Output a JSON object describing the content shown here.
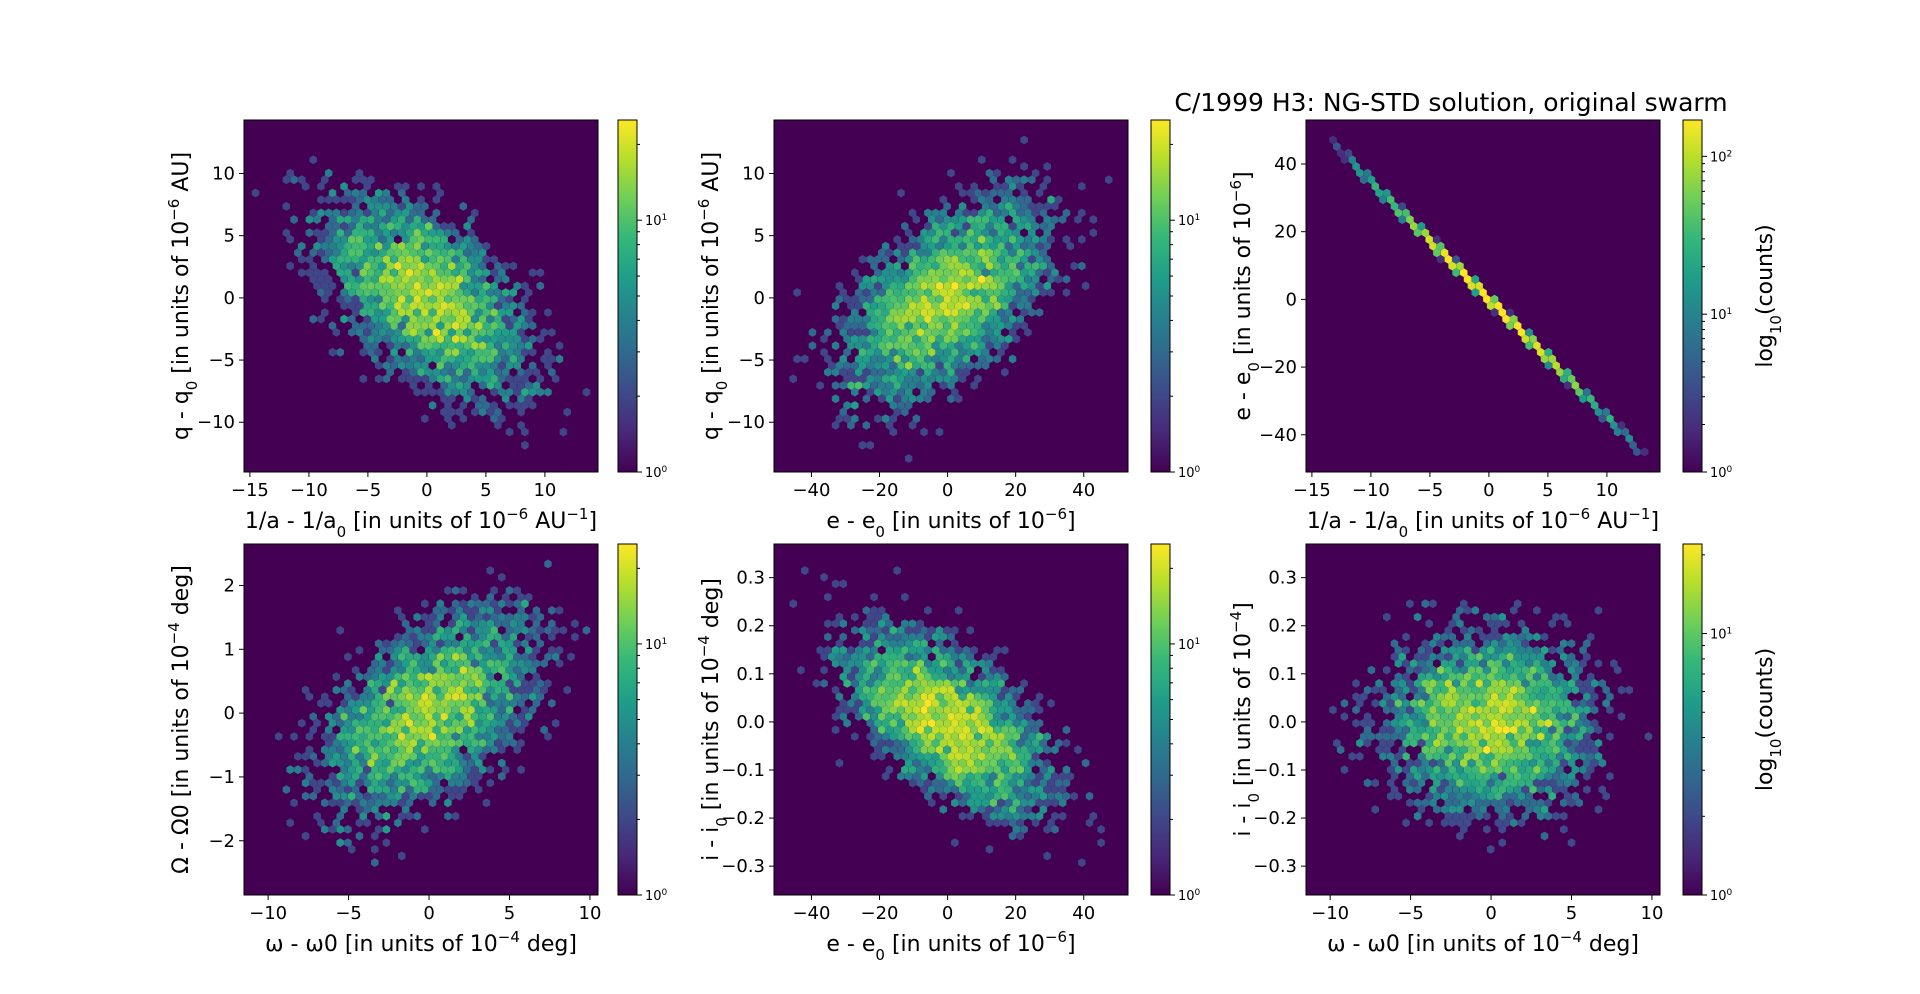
{
  "figure": {
    "title": "C/1999 H3: NG-STD solution, original swarm"
  },
  "colors": {
    "background": "#440154",
    "colormap": [
      "#440154",
      "#482878",
      "#3e4989",
      "#31688e",
      "#26828e",
      "#1f9e89",
      "#35b779",
      "#6ece58",
      "#b5de2b",
      "#fde725"
    ]
  },
  "chart_data": [
    {
      "type": "heatmap",
      "subtype": "hexbin",
      "scale": "log",
      "xlabel": "1/a - 1/a0 [in units of 10^-6 AU^-1]",
      "ylabel": "q - q0 [in units of 10^-6 AU]",
      "xlim": [
        -15.5,
        14.5
      ],
      "ylim": [
        -14,
        14.3
      ],
      "xticks": [
        -15,
        -10,
        -5,
        0,
        5,
        10
      ],
      "yticks": [
        -10,
        -5,
        0,
        5,
        10
      ],
      "distribution": {
        "x_sigma": 4.6,
        "y_sigma": 4.3,
        "correlation": -0.55,
        "n_points": 5000
      },
      "colorbar": {
        "ticks": [
          "10^0",
          "10^1"
        ],
        "range": [
          1,
          25
        ],
        "label": ""
      }
    },
    {
      "type": "heatmap",
      "subtype": "hexbin",
      "scale": "log",
      "xlabel": "e - e0 [in units of 10^-6]",
      "ylabel": "q - q0 [in units of 10^-6 AU]",
      "xlim": [
        -51,
        53
      ],
      "ylim": [
        -14,
        14.3
      ],
      "xticks": [
        -40,
        -20,
        0,
        20,
        40
      ],
      "yticks": [
        -10,
        -5,
        0,
        5,
        10
      ],
      "distribution": {
        "x_sigma": 16,
        "y_sigma": 4.3,
        "correlation": 0.55,
        "n_points": 5000
      },
      "colorbar": {
        "ticks": [
          "10^0",
          "10^1"
        ],
        "range": [
          1,
          25
        ],
        "label": ""
      }
    },
    {
      "type": "heatmap",
      "subtype": "hexbin",
      "scale": "log",
      "xlabel": "1/a - 1/a0 [in units of 10^-6 AU^-1]",
      "ylabel": "e - e0 [in units of 10^-6]",
      "xlim": [
        -15.5,
        14.5
      ],
      "ylim": [
        -51,
        53
      ],
      "xticks": [
        -15,
        -10,
        -5,
        0,
        5,
        10
      ],
      "yticks": [
        -40,
        -20,
        0,
        20,
        40
      ],
      "distribution": {
        "x_sigma": 4.6,
        "y_sigma": 16,
        "correlation": -0.9999,
        "n_points": 5000
      },
      "colorbar": {
        "ticks": [
          "10^0",
          "10^1",
          "10^2"
        ],
        "range": [
          1,
          170
        ],
        "label": "log10(counts)"
      }
    },
    {
      "type": "heatmap",
      "subtype": "hexbin",
      "scale": "log",
      "xlabel": "ω - ω0 [in units of 10^-4 deg]",
      "ylabel": "Ω - Ω0 [in units of 10^-4 deg]",
      "xlim": [
        -11.5,
        10.5
      ],
      "ylim": [
        -2.85,
        2.65
      ],
      "xticks": [
        -10,
        -5,
        0,
        5,
        10
      ],
      "yticks": [
        -2,
        -1,
        0,
        1,
        2
      ],
      "distribution": {
        "x_sigma": 3.5,
        "y_sigma": 0.85,
        "correlation": 0.5,
        "n_points": 5000
      },
      "colorbar": {
        "ticks": [
          "10^0",
          "10^1"
        ],
        "range": [
          1,
          25
        ],
        "label": ""
      }
    },
    {
      "type": "heatmap",
      "subtype": "hexbin",
      "scale": "log",
      "xlabel": "e - e0 [in units of 10^-6]",
      "ylabel": "i - i0 [in units of 10^-4 deg]",
      "xlim": [
        -51,
        53
      ],
      "ylim": [
        -0.36,
        0.37
      ],
      "xticks": [
        -40,
        -20,
        0,
        20,
        40
      ],
      "yticks": [
        -0.3,
        -0.2,
        -0.1,
        0.0,
        0.1,
        0.2,
        0.3
      ],
      "distribution": {
        "x_sigma": 16,
        "y_sigma": 0.1,
        "correlation": -0.6,
        "n_points": 5000
      },
      "colorbar": {
        "ticks": [
          "10^0",
          "10^1"
        ],
        "range": [
          1,
          25
        ],
        "label": ""
      }
    },
    {
      "type": "heatmap",
      "subtype": "hexbin",
      "scale": "log",
      "xlabel": "ω - ω0 [in units of 10^-4 deg]",
      "ylabel": "i - i0 [in units of 10^-4]",
      "xlim": [
        -11.5,
        10.5
      ],
      "ylim": [
        -0.36,
        0.37
      ],
      "xticks": [
        -10,
        -5,
        0,
        5,
        10
      ],
      "yticks": [
        -0.3,
        -0.2,
        -0.1,
        0.0,
        0.1,
        0.2,
        0.3
      ],
      "distribution": {
        "x_sigma": 3.5,
        "y_sigma": 0.1,
        "correlation": 0.0,
        "n_points": 5000
      },
      "colorbar": {
        "ticks": [
          "10^0",
          "10^1"
        ],
        "range": [
          1,
          22
        ],
        "label": "log10(counts)"
      }
    }
  ]
}
